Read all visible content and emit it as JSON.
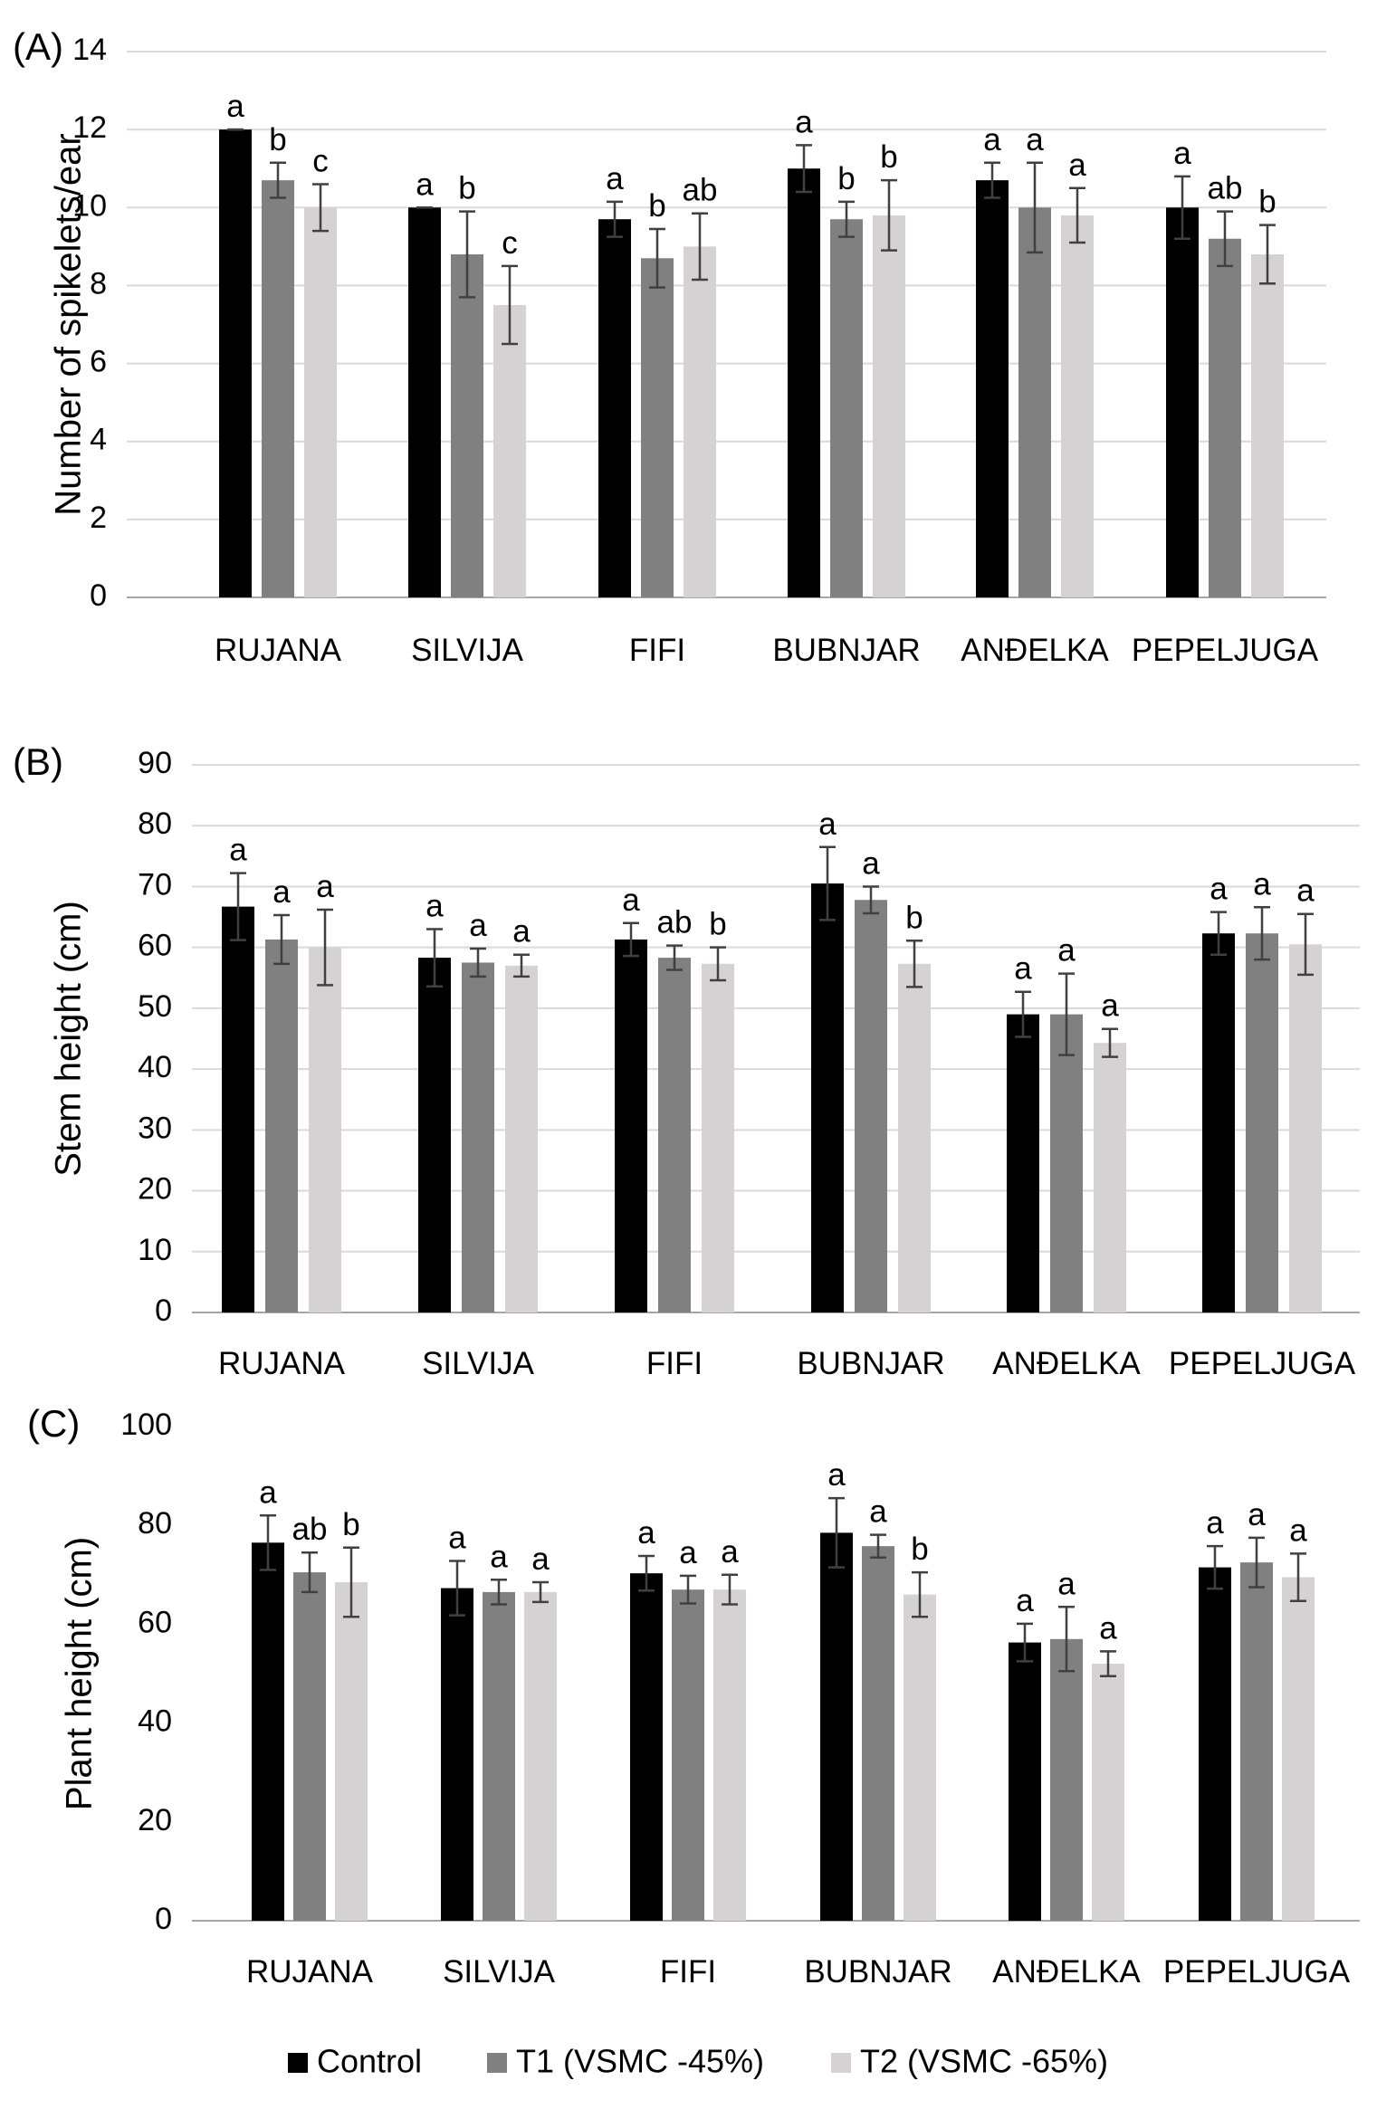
{
  "figure": {
    "legend": [
      {
        "label": "Control",
        "color": "#000000"
      },
      {
        "label": "T1 (VSMC -45%)",
        "color": "#808080"
      },
      {
        "label": "T2 (VSMC -65%)",
        "color": "#d6d2d3"
      }
    ]
  },
  "chart_data": [
    {
      "type": "bar",
      "panel": "(A)",
      "title": "",
      "xlabel": "",
      "ylabel": "Number of spikelets/ear",
      "ylim": [
        0,
        14
      ],
      "yticks": [
        0,
        2,
        4,
        6,
        8,
        10,
        12,
        14
      ],
      "grid": true,
      "categories": [
        "RUJANA",
        "SILVIJA",
        "FIFI",
        "BUBNJAR",
        "ANĐELKA",
        "PEPELJUGA"
      ],
      "series": [
        {
          "name": "Control",
          "values": [
            12.0,
            10.0,
            9.7,
            11.0,
            10.7,
            10.0
          ],
          "errors": [
            0.0,
            0.0,
            0.45,
            0.6,
            0.45,
            0.8
          ],
          "letters": [
            "a",
            "a",
            "a",
            "a",
            "a",
            "a"
          ]
        },
        {
          "name": "T1 (VSMC -45%)",
          "values": [
            10.7,
            8.8,
            8.7,
            9.7,
            10.0,
            9.2
          ],
          "errors": [
            0.45,
            1.1,
            0.75,
            0.45,
            1.15,
            0.7
          ],
          "letters": [
            "b",
            "b",
            "b",
            "b",
            "a",
            "ab"
          ]
        },
        {
          "name": "T2 (VSMC -65%)",
          "values": [
            10.0,
            7.5,
            9.0,
            9.8,
            9.8,
            8.8
          ],
          "errors": [
            0.6,
            1.0,
            0.85,
            0.9,
            0.7,
            0.75
          ],
          "letters": [
            "c",
            "c",
            "ab",
            "b",
            "a",
            "b"
          ]
        }
      ]
    },
    {
      "type": "bar",
      "panel": "(B)",
      "title": "",
      "xlabel": "",
      "ylabel": "Stem height (cm)",
      "ylim": [
        0,
        90
      ],
      "yticks": [
        0,
        10,
        20,
        30,
        40,
        50,
        60,
        70,
        80,
        90
      ],
      "grid": true,
      "categories": [
        "RUJANA",
        "SILVIJA",
        "FIFI",
        "BUBNJAR",
        "ANĐELKA",
        "PEPELJUGA"
      ],
      "series": [
        {
          "name": "Control",
          "values": [
            66.7,
            58.3,
            61.3,
            70.5,
            49.0,
            62.3
          ],
          "errors": [
            5.5,
            4.7,
            2.7,
            6.0,
            3.7,
            3.5
          ],
          "letters": [
            "a",
            "a",
            "a",
            "a",
            "a",
            "a"
          ]
        },
        {
          "name": "T1 (VSMC -45%)",
          "values": [
            61.3,
            57.5,
            58.3,
            67.8,
            49.0,
            62.3
          ],
          "errors": [
            4.0,
            2.3,
            2.0,
            2.2,
            6.7,
            4.3
          ],
          "letters": [
            "a",
            "a",
            "ab",
            "a",
            "a",
            "a"
          ]
        },
        {
          "name": "T2 (VSMC -65%)",
          "values": [
            60.0,
            57.0,
            57.3,
            57.3,
            44.3,
            60.5
          ],
          "errors": [
            6.2,
            1.8,
            2.7,
            3.8,
            2.3,
            5.0
          ],
          "letters": [
            "a",
            "a",
            "b",
            "b",
            "a",
            "a"
          ]
        }
      ]
    },
    {
      "type": "bar",
      "panel": "(C)",
      "title": "",
      "xlabel": "",
      "ylabel": "Plant height (cm)",
      "ylim": [
        0,
        100
      ],
      "yticks": [
        0,
        20,
        40,
        60,
        80,
        100
      ],
      "grid": false,
      "categories": [
        "RUJANA",
        "SILVIJA",
        "FIFI",
        "BUBNJAR",
        "ANĐELKA",
        "PEPELJUGA"
      ],
      "series": [
        {
          "name": "Control",
          "values": [
            76.5,
            67.3,
            70.3,
            78.5,
            56.3,
            71.5
          ],
          "errors": [
            5.5,
            5.5,
            3.5,
            7.0,
            3.8,
            4.3
          ],
          "letters": [
            "a",
            "a",
            "a",
            "a",
            "a",
            "a"
          ]
        },
        {
          "name": "T1 (VSMC -45%)",
          "values": [
            70.5,
            66.5,
            67.0,
            75.8,
            57.0,
            72.5
          ],
          "errors": [
            4.0,
            2.5,
            2.8,
            2.3,
            6.5,
            5.0
          ],
          "letters": [
            "ab",
            "a",
            "a",
            "a",
            "a",
            "a"
          ]
        },
        {
          "name": "T2 (VSMC -65%)",
          "values": [
            68.5,
            66.5,
            67.0,
            66.0,
            52.0,
            69.5
          ],
          "errors": [
            7.0,
            2.0,
            3.0,
            4.5,
            2.5,
            4.8
          ],
          "letters": [
            "b",
            "a",
            "a",
            "b",
            "a",
            "a"
          ]
        }
      ]
    }
  ]
}
